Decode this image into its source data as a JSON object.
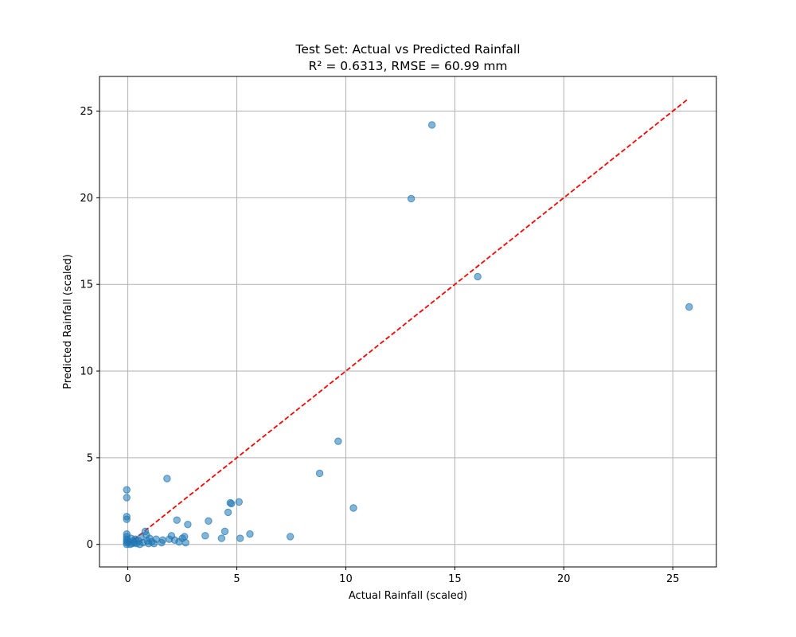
{
  "chart_data": {
    "type": "scatter",
    "title": "Test Set: Actual vs Predicted Rainfall",
    "subtitle": "R² = 0.6313, RMSE = 60.99 mm",
    "xlabel": "Actual Rainfall (scaled)",
    "ylabel": "Predicted Rainfall (scaled)",
    "xlim": [
      -1.3,
      27.0
    ],
    "ylim": [
      -1.3,
      27.0
    ],
    "xticks": [
      0,
      5,
      10,
      15,
      20,
      25
    ],
    "yticks": [
      0,
      5,
      10,
      15,
      20,
      25
    ],
    "grid": true,
    "legend": "none",
    "colors": {
      "points": "#1f77b4",
      "reference_line": "#ff0000"
    },
    "reference_line": {
      "x": [
        0,
        25.7
      ],
      "y": [
        0,
        25.7
      ],
      "style": "dashed"
    },
    "points": [
      [
        13.95,
        24.2
      ],
      [
        13.0,
        19.95
      ],
      [
        16.05,
        15.45
      ],
      [
        25.75,
        13.7
      ],
      [
        9.65,
        5.95
      ],
      [
        8.8,
        4.1
      ],
      [
        10.35,
        2.1
      ],
      [
        1.8,
        3.8
      ],
      [
        -0.05,
        3.15
      ],
      [
        -0.05,
        2.7
      ],
      [
        -0.05,
        1.6
      ],
      [
        -0.05,
        1.45
      ],
      [
        4.7,
        2.4
      ],
      [
        4.75,
        2.35
      ],
      [
        5.1,
        2.45
      ],
      [
        4.6,
        1.85
      ],
      [
        3.7,
        1.35
      ],
      [
        2.25,
        1.4
      ],
      [
        2.75,
        1.15
      ],
      [
        4.45,
        0.75
      ],
      [
        5.6,
        0.6
      ],
      [
        7.45,
        0.45
      ],
      [
        5.15,
        0.35
      ],
      [
        4.3,
        0.35
      ],
      [
        3.55,
        0.5
      ],
      [
        2.6,
        0.45
      ],
      [
        2.5,
        0.35
      ],
      [
        2.65,
        0.1
      ],
      [
        2.35,
        0.15
      ],
      [
        2.15,
        0.25
      ],
      [
        2.0,
        0.5
      ],
      [
        1.9,
        0.3
      ],
      [
        1.6,
        0.25
      ],
      [
        1.55,
        0.1
      ],
      [
        1.3,
        0.3
      ],
      [
        1.1,
        0.15
      ],
      [
        0.8,
        0.75
      ],
      [
        0.85,
        0.55
      ],
      [
        0.6,
        0.4
      ],
      [
        0.5,
        0.2
      ],
      [
        0.3,
        0.1
      ],
      [
        0.2,
        0.05
      ],
      [
        0.1,
        0.0
      ],
      [
        0.4,
        0.05
      ],
      [
        0.7,
        0.1
      ],
      [
        0.95,
        0.05
      ],
      [
        -0.05,
        0.6
      ],
      [
        -0.05,
        0.45
      ],
      [
        -0.05,
        0.3
      ],
      [
        -0.05,
        0.2
      ],
      [
        -0.05,
        0.1
      ],
      [
        -0.05,
        0.0
      ],
      [
        0.15,
        0.35
      ],
      [
        0.25,
        0.2
      ],
      [
        0.05,
        0.15
      ],
      [
        0.35,
        0.3
      ],
      [
        1.0,
        0.35
      ],
      [
        1.2,
        0.05
      ],
      [
        0.55,
        0.0
      ],
      [
        0.9,
        0.2
      ]
    ]
  }
}
